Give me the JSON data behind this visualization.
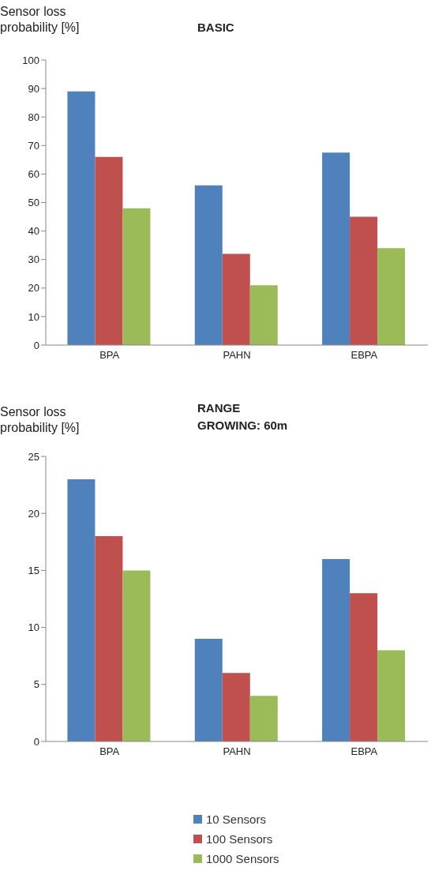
{
  "chart_data": [
    {
      "type": "bar",
      "title": "BASIC",
      "ylabel": "Sensor loss probability [%]",
      "categories": [
        "BPA",
        "PAHN",
        "EBPA"
      ],
      "series": [
        {
          "color": "#4f81bd",
          "values": [
            89,
            56,
            67.5
          ]
        },
        {
          "color": "#c0504d",
          "values": [
            66,
            32,
            45
          ]
        },
        {
          "color": "#9bbb59",
          "values": [
            48,
            21,
            34
          ]
        }
      ],
      "ylim": [
        0,
        100
      ],
      "yticks": [
        0,
        10,
        20,
        30,
        40,
        50,
        60,
        70,
        80,
        90,
        100
      ],
      "grid": false,
      "legend": false
    },
    {
      "type": "bar",
      "title": "RANGE GROWING: 60m",
      "ylabel": "Sensor loss probability [%]",
      "categories": [
        "BPA",
        "PAHN",
        "EBPA"
      ],
      "series": [
        {
          "name": "10 Sensors",
          "color": "#4f81bd",
          "values": [
            23,
            9,
            16
          ]
        },
        {
          "name": "100 Sensors",
          "color": "#c0504d",
          "values": [
            18,
            6,
            13
          ]
        },
        {
          "name": "1000 Sensors",
          "color": "#9bbb59",
          "values": [
            15,
            4,
            8
          ]
        }
      ],
      "ylim": [
        0,
        25
      ],
      "yticks": [
        0,
        5,
        10,
        15,
        20,
        25
      ],
      "grid": false,
      "legend": "bottom"
    }
  ]
}
